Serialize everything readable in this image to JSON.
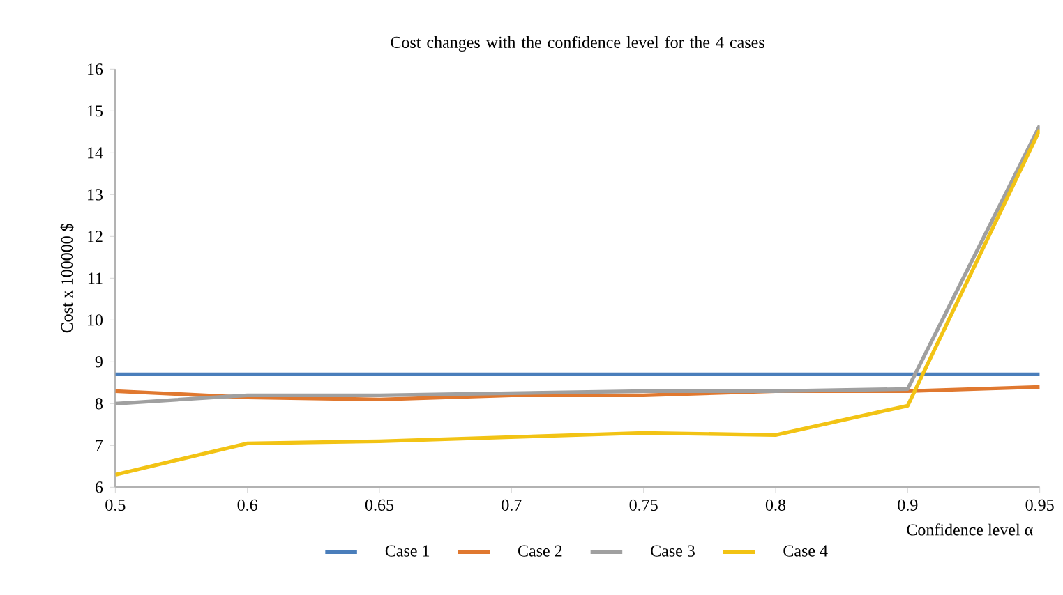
{
  "chart_data": {
    "type": "line",
    "title": "Cost changes with the confidence level for the 4 cases",
    "xlabel": "Confidence level α",
    "ylabel": "Cost x 100000 $",
    "categories": [
      "0.5",
      "0.6",
      "0.65",
      "0.7",
      "0.75",
      "0.8",
      "0.9",
      "0.95"
    ],
    "series": [
      {
        "name": "Case 1",
        "color": "#4a7ebb",
        "values": [
          8.7,
          8.7,
          8.7,
          8.7,
          8.7,
          8.7,
          8.7,
          8.7
        ]
      },
      {
        "name": "Case 2",
        "color": "#e0782f",
        "values": [
          8.3,
          8.15,
          8.1,
          8.2,
          8.2,
          8.3,
          8.3,
          8.4
        ]
      },
      {
        "name": "Case 3",
        "color": "#a0a0a0",
        "values": [
          8.0,
          8.2,
          8.2,
          8.25,
          8.3,
          8.3,
          8.35,
          14.65
        ]
      },
      {
        "name": "Case 4",
        "color": "#f2c314",
        "values": [
          6.3,
          7.05,
          7.1,
          7.2,
          7.3,
          7.25,
          7.95,
          14.55
        ]
      }
    ],
    "ylim": [
      6,
      16
    ],
    "yticks": [
      6,
      7,
      8,
      9,
      10,
      11,
      12,
      13,
      14,
      15,
      16
    ],
    "grid": false,
    "legend": "bottom",
    "marker": "none",
    "line_style": "solid"
  }
}
